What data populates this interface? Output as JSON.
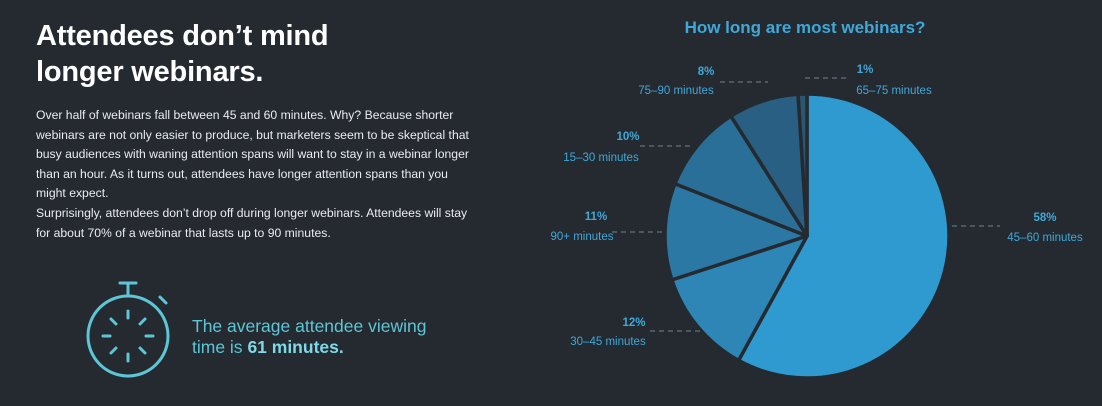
{
  "headline": {
    "line1": "Attendees don’t mind",
    "line2": "longer webinars."
  },
  "paragraphs": [
    "Over half of webinars fall between 45 and 60 minutes. Why? Because shorter webinars are not only easier to produce, but marketers seem to be skeptical that busy audiences with waning attention spans will want to stay in a webinar longer than an hour.  As it turns out, attendees have longer attention spans than you might expect.",
    "Surprisingly, attendees don’t drop off during longer webinars. Attendees will stay for about 70% of a webinar that lasts up to 90 minutes."
  ],
  "callout": {
    "prefix": "The average attendee viewing time is ",
    "highlight": "61 minutes."
  },
  "icons": {
    "stopwatch": "stopwatch-icon"
  },
  "colors": {
    "background": "#252a31",
    "accent": "#3fa8d8",
    "callout": "#5cc6d6",
    "slices": [
      "#2e9ad0",
      "#2d86b6",
      "#2b78a4",
      "#2a6f98",
      "#295f82",
      "#2a5670"
    ]
  },
  "chart_data": {
    "type": "pie",
    "title": "How long are most webinars?",
    "slices": [
      {
        "label": "45–60 minutes",
        "value": 58,
        "pct": "58%"
      },
      {
        "label": "30–45 minutes",
        "value": 12,
        "pct": "12%"
      },
      {
        "label": "90+ minutes",
        "value": 11,
        "pct": "11%"
      },
      {
        "label": "15–30 minutes",
        "value": 10,
        "pct": "10%"
      },
      {
        "label": "75–90 minutes",
        "value": 8,
        "pct": "8%"
      },
      {
        "label": "65–75 minutes",
        "value": 1,
        "pct": "1%"
      }
    ]
  }
}
